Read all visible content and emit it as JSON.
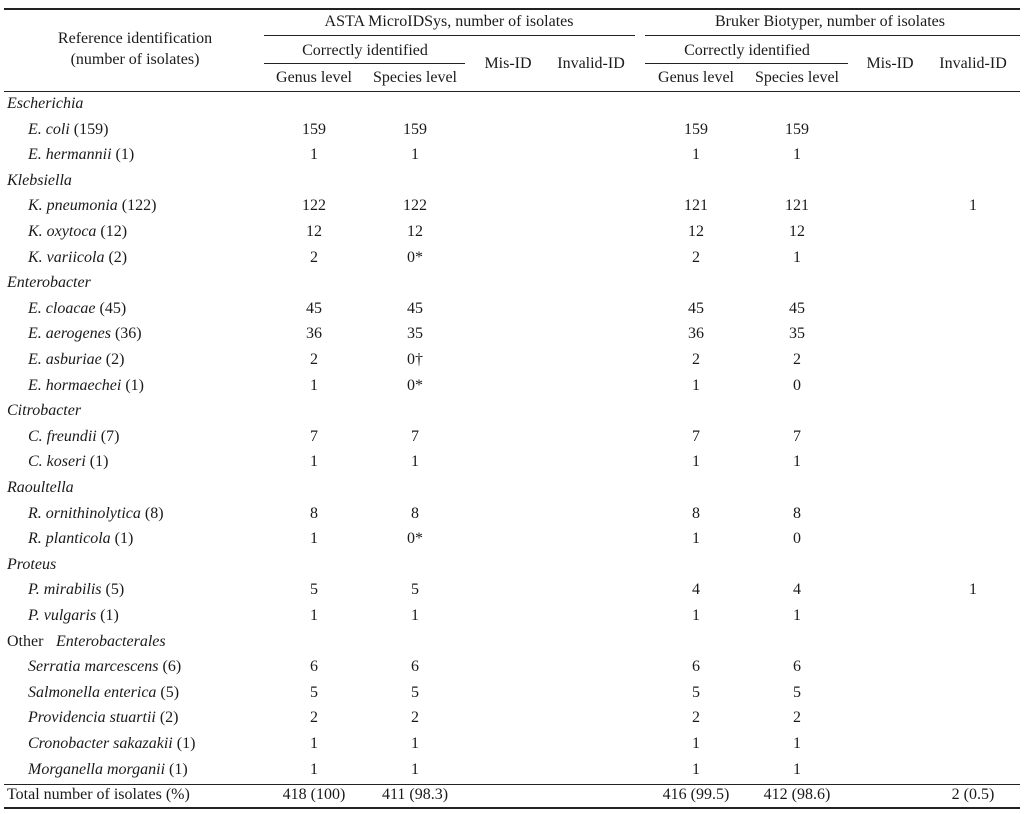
{
  "header": {
    "ref_col": [
      "Reference identification",
      "(number of isolates)"
    ],
    "asta_title": "ASTA MicroIDSys, number of isolates",
    "bruker_title": "Bruker Biotyper, number of isolates",
    "correctly_identified": "Correctly identified",
    "genus_level": "Genus level",
    "species_level": "Species level",
    "mis_id": "Mis-ID",
    "invalid_id": "Invalid-ID"
  },
  "rows": [
    {
      "kind": "group",
      "label": "Escherichia",
      "italic": true
    },
    {
      "kind": "item",
      "name": "E. coli",
      "count": "(159)",
      "ag": "159",
      "as": "159",
      "am": "",
      "ai": "",
      "bg": "159",
      "bs": "159",
      "bm": "",
      "bi": ""
    },
    {
      "kind": "item",
      "name": "E. hermannii",
      "count": "(1)",
      "ag": "1",
      "as": "1",
      "am": "",
      "ai": "",
      "bg": "1",
      "bs": "1",
      "bm": "",
      "bi": ""
    },
    {
      "kind": "group",
      "label": "Klebsiella",
      "italic": true
    },
    {
      "kind": "item",
      "name": "K. pneumonia",
      "count": "(122)",
      "ag": "122",
      "as": "122",
      "am": "",
      "ai": "",
      "bg": "121",
      "bs": "121",
      "bm": "",
      "bi": "1"
    },
    {
      "kind": "item",
      "name": "K. oxytoca",
      "count": "(12)",
      "ag": "12",
      "as": "12",
      "am": "",
      "ai": "",
      "bg": "12",
      "bs": "12",
      "bm": "",
      "bi": ""
    },
    {
      "kind": "item",
      "name": "K. variicola",
      "count": "(2)",
      "ag": "2",
      "as": "0*",
      "am": "",
      "ai": "",
      "bg": "2",
      "bs": "1",
      "bm": "",
      "bi": ""
    },
    {
      "kind": "group",
      "label": "Enterobacter",
      "italic": true
    },
    {
      "kind": "item",
      "name": "E. cloacae",
      "count": "(45)",
      "ag": "45",
      "as": "45",
      "am": "",
      "ai": "",
      "bg": "45",
      "bs": "45",
      "bm": "",
      "bi": ""
    },
    {
      "kind": "item",
      "name": "E. aerogenes",
      "count": "(36)",
      "ag": "36",
      "as": "35",
      "am": "",
      "ai": "",
      "bg": "36",
      "bs": "35",
      "bm": "",
      "bi": ""
    },
    {
      "kind": "item",
      "name": "E. asburiae",
      "count": "(2)",
      "ag": "2",
      "as": "0†",
      "am": "",
      "ai": "",
      "bg": "2",
      "bs": "2",
      "bm": "",
      "bi": ""
    },
    {
      "kind": "item",
      "name": "E. hormaechei",
      "count": "(1)",
      "ag": "1",
      "as": "0*",
      "am": "",
      "ai": "",
      "bg": "1",
      "bs": "0",
      "bm": "",
      "bi": ""
    },
    {
      "kind": "group",
      "label": "Citrobacter",
      "italic": true
    },
    {
      "kind": "item",
      "name": "C. freundii",
      "count": "(7)",
      "ag": "7",
      "as": "7",
      "am": "",
      "ai": "",
      "bg": "7",
      "bs": "7",
      "bm": "",
      "bi": ""
    },
    {
      "kind": "item",
      "name": "C. koseri",
      "count": "(1)",
      "ag": "1",
      "as": "1",
      "am": "",
      "ai": "",
      "bg": "1",
      "bs": "1",
      "bm": "",
      "bi": ""
    },
    {
      "kind": "group",
      "label": "Raoultella",
      "italic": true
    },
    {
      "kind": "item",
      "name": "R. ornithinolytica",
      "count": "(8)",
      "ag": "8",
      "as": "8",
      "am": "",
      "ai": "",
      "bg": "8",
      "bs": "8",
      "bm": "",
      "bi": ""
    },
    {
      "kind": "item",
      "name": "R. planticola",
      "count": "(1)",
      "ag": "1",
      "as": "0*",
      "am": "",
      "ai": "",
      "bg": "1",
      "bs": "0",
      "bm": "",
      "bi": ""
    },
    {
      "kind": "group",
      "label": "Proteus",
      "italic": true
    },
    {
      "kind": "item",
      "name": "P. mirabilis",
      "count": "(5)",
      "ag": "5",
      "as": "5",
      "am": "",
      "ai": "",
      "bg": "4",
      "bs": "4",
      "bm": "",
      "bi": "1"
    },
    {
      "kind": "item",
      "name": "P. vulgaris",
      "count": "(1)",
      "ag": "1",
      "as": "1",
      "am": "",
      "ai": "",
      "bg": "1",
      "bs": "1",
      "bm": "",
      "bi": ""
    },
    {
      "kind": "group",
      "label": "Other",
      "label_italic": "Enterobacterales",
      "italic": false
    },
    {
      "kind": "item",
      "name": "Serratia marcescens",
      "count": "(6)",
      "ag": "6",
      "as": "6",
      "am": "",
      "ai": "",
      "bg": "6",
      "bs": "6",
      "bm": "",
      "bi": ""
    },
    {
      "kind": "item",
      "name": "Salmonella enterica",
      "count": "(5)",
      "ag": "5",
      "as": "5",
      "am": "",
      "ai": "",
      "bg": "5",
      "bs": "5",
      "bm": "",
      "bi": ""
    },
    {
      "kind": "item",
      "name": "Providencia stuartii",
      "count": "(2)",
      "ag": "2",
      "as": "2",
      "am": "",
      "ai": "",
      "bg": "2",
      "bs": "2",
      "bm": "",
      "bi": ""
    },
    {
      "kind": "item",
      "name": "Cronobacter sakazakii",
      "count": "(1)",
      "ag": "1",
      "as": "1",
      "am": "",
      "ai": "",
      "bg": "1",
      "bs": "1",
      "bm": "",
      "bi": ""
    },
    {
      "kind": "item",
      "name": "Morganella morganii",
      "count": "(1)",
      "ag": "1",
      "as": "1",
      "am": "",
      "ai": "",
      "bg": "1",
      "bs": "1",
      "bm": "",
      "bi": ""
    }
  ],
  "total": {
    "label": "Total number of isolates (%)",
    "ag": "418 (100)",
    "as": "411 (98.3)",
    "am": "",
    "ai": "",
    "bg": "416 (99.5)",
    "bs": "412 (98.6)",
    "bm": "",
    "bi": "2 (0.5)"
  }
}
